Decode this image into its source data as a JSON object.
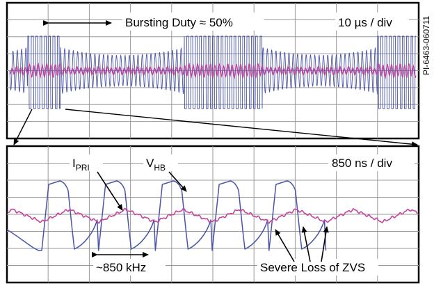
{
  "chart_data": [
    {
      "type": "line",
      "panel": "top",
      "annotations": {
        "duty": "Bursting Duty ≈ 50%",
        "timebase": "10 µs / div"
      },
      "series": [
        {
          "name": "",
          "color": "#4a55a8",
          "description_visible": "switching bursts"
        },
        {
          "name": "",
          "color": "#c4449a"
        }
      ],
      "bursts_div": [
        [
          0.5,
          1.3
        ],
        [
          4.3,
          6.2
        ],
        [
          9.0,
          10.0
        ]
      ],
      "grid_divisions": [
        10,
        8
      ]
    },
    {
      "type": "line",
      "panel": "bottom",
      "annotations": {
        "ipri_base": "I",
        "ipri_sub": "PRI",
        "vhb_base": "V",
        "vhb_sub": "HB",
        "timebase": "850 ns / div",
        "frequency": "~850 kHz",
        "zvs": "Severe Loss of ZVS"
      },
      "series": [
        {
          "name": "",
          "color": "#4a55a8"
        },
        {
          "name": "",
          "color": "#c4449a"
        }
      ],
      "period_div": 1.38,
      "grid_divisions": [
        10,
        8
      ]
    }
  ],
  "figure_id": "PI-6463-060711",
  "colors": {
    "vhb": "#4a55a8",
    "ipri": "#c4449a",
    "grid": "#9a9a9a"
  }
}
